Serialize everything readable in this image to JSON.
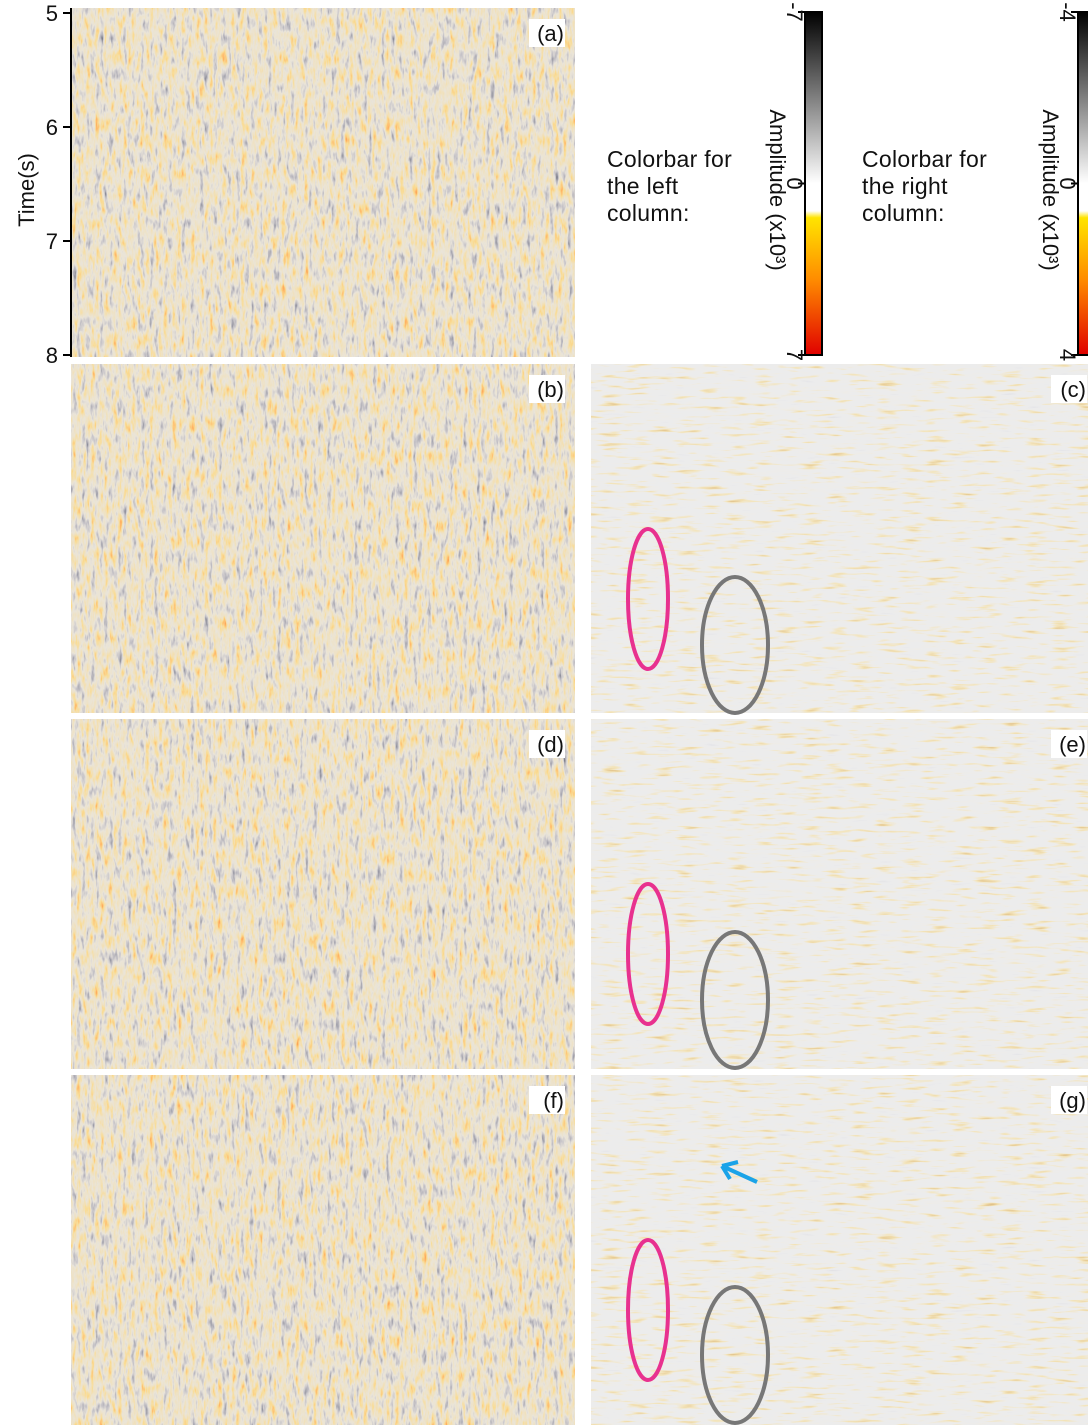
{
  "time_axis": {
    "label": "Time(s)",
    "ticks": [
      5,
      6,
      7,
      8
    ]
  },
  "panels": [
    "(a)",
    "(b)",
    "(c)",
    "(d)",
    "(e)",
    "(f)",
    "(g)"
  ],
  "colorbars": [
    {
      "caption": "Colorbar for the left column:",
      "label": "Amplitude (x10³)",
      "ticks": [
        -7,
        0,
        7
      ]
    },
    {
      "caption": "Colorbar for the right column:",
      "label": "Amplitude (x10³)",
      "ticks": [
        -4,
        0,
        4
      ]
    }
  ]
}
